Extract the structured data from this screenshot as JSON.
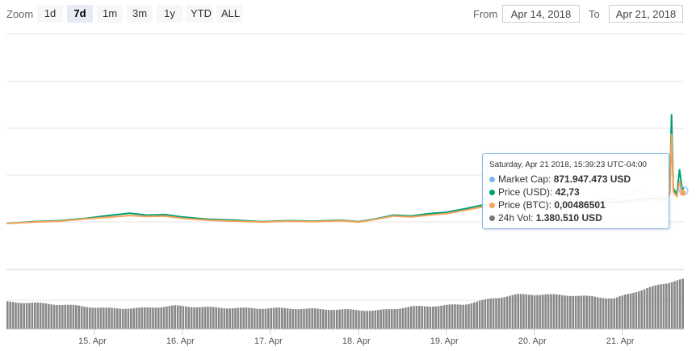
{
  "toolbar": {
    "zoom_label": "Zoom",
    "zoom_buttons": [
      "1d",
      "7d",
      "1m",
      "3m",
      "1y",
      "YTD",
      "ALL"
    ],
    "active_zoom": "7d",
    "from_label": "From",
    "from_value": "Apr 14, 2018",
    "to_label": "To",
    "to_value": "Apr 21, 2018"
  },
  "tooltip": {
    "header": "Saturday, Apr 21 2018, 15:39:23 UTC-04:00",
    "rows": [
      {
        "label": "Market Cap",
        "value": "871.947.473 USD",
        "color": "#7cb5ec"
      },
      {
        "label": "Price (USD)",
        "value": "42,73",
        "color": "#009e73"
      },
      {
        "label": "Price (BTC)",
        "value": "0,00486501",
        "color": "#f7a35c"
      },
      {
        "label": "24h Vol",
        "value": "1.380.510 USD",
        "color": "#777777"
      }
    ]
  },
  "colors": {
    "price_usd": "#009e73",
    "price_btc": "#f7a35c",
    "market_cap": "#7cb5ec",
    "volume": "#888888",
    "grid": "#e6e6e6"
  },
  "chart_data": {
    "type": "line",
    "x_tick_labels": [
      "15. Apr",
      "16. Apr",
      "17. Apr",
      "18. Apr",
      "19. Apr",
      "20. Apr",
      "21. Apr"
    ],
    "x_range_days": [
      14.0,
      21.7
    ],
    "series": [
      {
        "name": "Price (USD)",
        "x_days": [
          14.0,
          14.3,
          14.6,
          14.9,
          15.2,
          15.4,
          15.6,
          15.8,
          16.0,
          16.3,
          16.6,
          16.9,
          17.2,
          17.5,
          17.8,
          18.0,
          18.2,
          18.4,
          18.6,
          18.8,
          19.0,
          19.2,
          19.4,
          19.6,
          19.8,
          20.0,
          20.3,
          20.6,
          20.9,
          21.1,
          21.3,
          21.5,
          21.52,
          21.54,
          21.56,
          21.58,
          21.62,
          21.65,
          21.68,
          21.7
        ],
        "values": [
          0.0,
          0.8,
          1.2,
          2.2,
          3.6,
          4.4,
          3.6,
          3.8,
          2.8,
          1.8,
          1.4,
          0.8,
          1.2,
          1.0,
          1.4,
          0.8,
          2.0,
          3.6,
          3.2,
          4.2,
          4.8,
          6.2,
          7.8,
          8.6,
          8.0,
          8.2,
          8.6,
          8.8,
          9.2,
          9.8,
          10.8,
          10.6,
          12.0,
          14.5,
          46.5,
          15.0,
          12.5,
          23.0,
          14.5,
          15.2
        ]
      },
      {
        "name": "Price (BTC)",
        "x_days": [
          14.0,
          14.3,
          14.6,
          14.9,
          15.2,
          15.4,
          15.6,
          15.8,
          16.0,
          16.3,
          16.6,
          16.9,
          17.2,
          17.5,
          17.8,
          18.0,
          18.2,
          18.4,
          18.6,
          18.8,
          19.0,
          19.2,
          19.4,
          19.6,
          19.8,
          20.0,
          20.3,
          20.6,
          20.9,
          21.1,
          21.3,
          21.5,
          21.52,
          21.54,
          21.56,
          21.58,
          21.62,
          21.65,
          21.68,
          21.7
        ],
        "values": [
          0.0,
          0.6,
          1.0,
          2.0,
          2.8,
          3.4,
          3.0,
          3.2,
          2.2,
          1.4,
          1.0,
          0.6,
          1.0,
          0.8,
          1.2,
          0.6,
          1.8,
          3.2,
          2.8,
          3.6,
          4.2,
          5.6,
          7.0,
          7.8,
          7.6,
          7.8,
          8.2,
          8.4,
          8.8,
          9.4,
          10.2,
          10.0,
          11.0,
          13.0,
          38.0,
          13.5,
          11.5,
          18.0,
          13.0,
          14.2
        ]
      },
      {
        "name": "Market Cap",
        "x_days": [
          20.6,
          20.9,
          21.1,
          21.2,
          21.3,
          21.5
        ],
        "values": [
          9.6,
          10.4,
          12.6,
          14.4,
          12.2,
          11.4
        ]
      },
      {
        "name": "24h Vol",
        "x_days": [
          14.0,
          14.4,
          14.8,
          15.1,
          15.5,
          15.9,
          16.3,
          16.7,
          17.1,
          17.5,
          17.9,
          18.2,
          18.6,
          18.9,
          19.2,
          19.5,
          19.8,
          20.1,
          20.4,
          20.7,
          20.9,
          21.1,
          21.3,
          21.5,
          21.6,
          21.7
        ],
        "values": [
          34,
          32,
          29,
          26,
          26,
          29,
          27,
          26,
          26,
          25,
          24,
          23,
          28,
          29,
          31,
          38,
          43,
          43,
          42,
          40,
          38,
          45,
          52,
          57,
          61,
          63
        ]
      }
    ]
  }
}
